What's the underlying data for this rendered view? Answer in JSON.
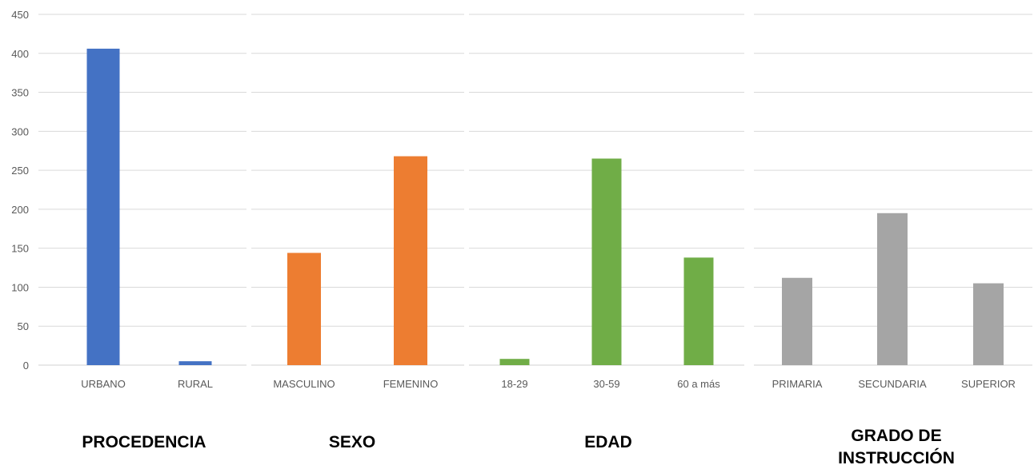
{
  "chart_data": {
    "type": "bar",
    "ylim": [
      0,
      450
    ],
    "yticks": [
      "0",
      "50",
      "100",
      "150",
      "200",
      "250",
      "300",
      "350",
      "400",
      "450"
    ],
    "grid": true,
    "groups": [
      {
        "title": "PROCEDENCIA",
        "color": "#4472C4",
        "categories": [
          "URBANO",
          "RURAL"
        ],
        "values": [
          406,
          5
        ]
      },
      {
        "title": "SEXO",
        "color": "#ED7D31",
        "categories": [
          "MASCULINO",
          "FEMENINO"
        ],
        "values": [
          144,
          268
        ]
      },
      {
        "title": "EDAD",
        "color": "#70AD47",
        "categories": [
          "18-29",
          "30-59",
          "60 a más"
        ],
        "values": [
          8,
          265,
          138
        ]
      },
      {
        "title_lines": [
          "GRADO DE",
          "INSTRUCCIÓN"
        ],
        "color": "#A5A5A5",
        "categories": [
          "PRIMARIA",
          "SECUNDARIA",
          "SUPERIOR"
        ],
        "values": [
          112,
          195,
          105
        ]
      }
    ]
  }
}
